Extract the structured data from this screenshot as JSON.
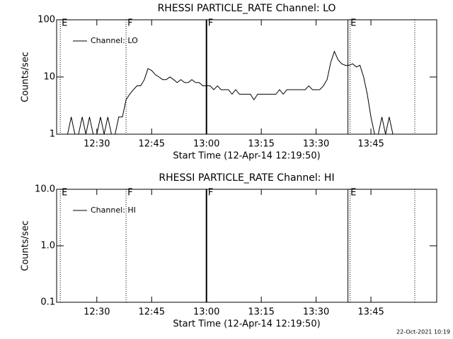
{
  "chart_data": [
    {
      "type": "line",
      "title": "RHESSI PARTICLE_RATE Channel: LO",
      "x_label": "Start Time (12-Apr-14 12:19:50)",
      "y_label": "Counts/sec",
      "log_y": true,
      "legend": "top-left",
      "xlim": [
        "12:19",
        "14:03"
      ],
      "xticks": [
        "12:30",
        "12:45",
        "13:00",
        "13:15",
        "13:30",
        "13:45"
      ],
      "ylim": [
        1,
        100
      ],
      "yticks": [
        1,
        10,
        100
      ],
      "markers": [
        {
          "x": "12:20",
          "label": "E",
          "style": "dotted"
        },
        {
          "x": "12:38",
          "label": "F",
          "style": "dotted"
        },
        {
          "x": "13:00",
          "label": "F",
          "style": "thick"
        },
        {
          "x": "13:39",
          "label": "E",
          "style": "double"
        },
        {
          "x": "13:57",
          "style": "dotted"
        }
      ],
      "series": [
        {
          "name": "Channel: LO",
          "color": "#000000",
          "x": [
            "12:20",
            "12:21",
            "12:22",
            "12:23",
            "12:24",
            "12:25",
            "12:26",
            "12:27",
            "12:28",
            "12:29",
            "12:30",
            "12:31",
            "12:32",
            "12:33",
            "12:34",
            "12:35",
            "12:36",
            "12:37",
            "12:38",
            "12:39",
            "12:40",
            "12:41",
            "12:42",
            "12:43",
            "12:44",
            "12:45",
            "12:46",
            "12:47",
            "12:48",
            "12:49",
            "12:50",
            "12:51",
            "12:52",
            "12:53",
            "12:54",
            "12:55",
            "12:56",
            "12:57",
            "12:58",
            "12:59",
            "13:00",
            "13:01",
            "13:02",
            "13:03",
            "13:04",
            "13:05",
            "13:06",
            "13:07",
            "13:08",
            "13:09",
            "13:10",
            "13:11",
            "13:12",
            "13:13",
            "13:14",
            "13:15",
            "13:16",
            "13:17",
            "13:18",
            "13:19",
            "13:20",
            "13:21",
            "13:22",
            "13:23",
            "13:24",
            "13:25",
            "13:26",
            "13:27",
            "13:28",
            "13:29",
            "13:30",
            "13:31",
            "13:32",
            "13:33",
            "13:34",
            "13:35",
            "13:36",
            "13:37",
            "13:38",
            "13:39",
            "13:40",
            "13:41",
            "13:42",
            "13:43",
            "13:44",
            "13:45",
            "13:46",
            "13:47",
            "13:48",
            "13:49",
            "13:50",
            "13:51",
            "13:52"
          ],
          "values": [
            1,
            1,
            1,
            2,
            1,
            1,
            2,
            1,
            2,
            1,
            1,
            2,
            1,
            2,
            1,
            1,
            2,
            2,
            4,
            5,
            6,
            7,
            7,
            9,
            14,
            13,
            11,
            10,
            9,
            9,
            10,
            9,
            8,
            9,
            8,
            8,
            9,
            8,
            8,
            7,
            7,
            7,
            6,
            7,
            6,
            6,
            6,
            5,
            6,
            5,
            5,
            5,
            5,
            4,
            5,
            5,
            5,
            5,
            5,
            5,
            6,
            5,
            6,
            6,
            6,
            6,
            6,
            6,
            7,
            6,
            6,
            6,
            7,
            9,
            18,
            28,
            20,
            17,
            16,
            16,
            17,
            15,
            16,
            10,
            5,
            2,
            1,
            1,
            2,
            1,
            2,
            1,
            1
          ]
        }
      ]
    },
    {
      "type": "line",
      "title": "RHESSI PARTICLE_RATE Channel: HI",
      "x_label": "Start Time (12-Apr-14 12:19:50)",
      "y_label": "Counts/sec",
      "log_y": true,
      "legend": "top-left",
      "xlim": [
        "12:19",
        "14:03"
      ],
      "xticks": [
        "12:30",
        "12:45",
        "13:00",
        "13:15",
        "13:30",
        "13:45"
      ],
      "ylim": [
        0.1,
        10
      ],
      "yticks": [
        0.1,
        {
          "value": 1,
          "label": "1.0"
        },
        {
          "value": 10,
          "label": "10.0"
        }
      ],
      "markers": [
        {
          "x": "12:20",
          "label": "E",
          "style": "dotted"
        },
        {
          "x": "12:38",
          "label": "F",
          "style": "dotted"
        },
        {
          "x": "13:00",
          "label": "F",
          "style": "thick"
        },
        {
          "x": "13:39",
          "label": "E",
          "style": "double"
        },
        {
          "x": "13:57",
          "style": "dotted"
        }
      ],
      "series": [
        {
          "name": "Channel: HI",
          "color": "#000000",
          "x": [],
          "values": []
        }
      ]
    }
  ],
  "footer": "22-Oct-2021 10:19"
}
